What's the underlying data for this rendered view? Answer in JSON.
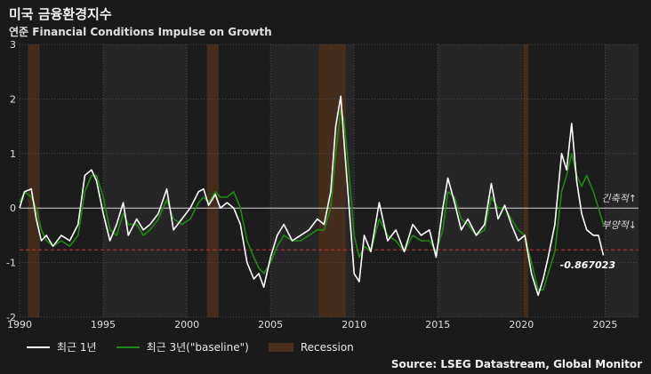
{
  "title": "미국 금융환경지수",
  "subtitle": "연준 Financial Conditions Impulse on Growth",
  "source": "Source: LSEG Datastream, Global Monitor",
  "colors": {
    "background": "#1a1a1a",
    "plot_bg": "#1f1f1f",
    "recent1": "#ffffff",
    "recent3": "#1f8a12",
    "recession": "#4a2f1c",
    "threshold": "#c83232"
  },
  "chart_data": {
    "type": "line",
    "xlim": [
      1990,
      2027
    ],
    "ylim": [
      -2,
      3
    ],
    "xticks": [
      1990,
      1995,
      2000,
      2005,
      2010,
      2015,
      2020,
      2025
    ],
    "xtick_labels": [
      "1990",
      "1995",
      "2000",
      "2005",
      "2010",
      "2015",
      "2020",
      "2025"
    ],
    "yticks": [
      -2,
      -1,
      0,
      1,
      2,
      3
    ],
    "ytick_labels": [
      "-2",
      "-1",
      "0",
      "1",
      "2",
      "3"
    ],
    "grid": true,
    "zero_line": 0,
    "threshold_line": -0.767,
    "recessions": [
      [
        1990.5,
        1991.2
      ],
      [
        2001.2,
        2001.9
      ],
      [
        2007.9,
        2009.5
      ],
      [
        2020.1,
        2020.4
      ]
    ],
    "annotations": {
      "tight": "긴축적↑",
      "loose": "부양적↓",
      "last_value": "-0.867023"
    },
    "legend": [
      "최근 1년",
      "최근 3년(\"baseline\")",
      "Recession"
    ],
    "series": [
      {
        "name": "최근 1년",
        "x": [
          1990.0,
          1990.3,
          1990.7,
          1991.0,
          1991.3,
          1991.6,
          1992.0,
          1992.5,
          1993.0,
          1993.5,
          1993.9,
          1994.3,
          1994.6,
          1995.0,
          1995.4,
          1995.8,
          1996.2,
          1996.5,
          1997.0,
          1997.4,
          1997.8,
          1998.3,
          1998.8,
          1999.2,
          1999.7,
          2000.2,
          2000.7,
          2001.0,
          2001.3,
          2001.7,
          2002.0,
          2002.4,
          2002.8,
          2003.2,
          2003.6,
          2004.0,
          2004.3,
          2004.6,
          2005.0,
          2005.4,
          2005.8,
          2006.3,
          2006.8,
          2007.3,
          2007.8,
          2008.2,
          2008.6,
          2008.9,
          2009.2,
          2009.4,
          2009.7,
          2010.0,
          2010.3,
          2010.6,
          2011.0,
          2011.5,
          2012.0,
          2012.5,
          2013.0,
          2013.5,
          2014.0,
          2014.5,
          2014.9,
          2015.3,
          2015.6,
          2016.0,
          2016.4,
          2016.8,
          2017.3,
          2017.8,
          2018.2,
          2018.6,
          2019.0,
          2019.4,
          2019.8,
          2020.2,
          2020.6,
          2021.0,
          2021.3,
          2021.6,
          2022.0,
          2022.4,
          2022.7,
          2023.0,
          2023.3,
          2023.6,
          2023.9,
          2024.3,
          2024.6,
          2024.9
        ],
        "y": [
          0.0,
          0.3,
          0.35,
          -0.2,
          -0.6,
          -0.5,
          -0.7,
          -0.5,
          -0.6,
          -0.3,
          0.6,
          0.7,
          0.5,
          -0.1,
          -0.6,
          -0.3,
          0.1,
          -0.5,
          -0.2,
          -0.4,
          -0.3,
          -0.1,
          0.35,
          -0.4,
          -0.2,
          0.0,
          0.3,
          0.35,
          0.05,
          0.25,
          0.0,
          0.1,
          0.0,
          -0.3,
          -1.0,
          -1.3,
          -1.2,
          -1.45,
          -0.9,
          -0.5,
          -0.3,
          -0.6,
          -0.5,
          -0.4,
          -0.2,
          -0.3,
          0.3,
          1.5,
          2.05,
          1.2,
          0.0,
          -1.2,
          -1.35,
          -0.5,
          -0.8,
          0.1,
          -0.6,
          -0.4,
          -0.8,
          -0.3,
          -0.5,
          -0.4,
          -0.9,
          0.0,
          0.55,
          0.1,
          -0.4,
          -0.2,
          -0.5,
          -0.3,
          0.45,
          -0.2,
          0.05,
          -0.3,
          -0.6,
          -0.5,
          -1.2,
          -1.6,
          -1.3,
          -0.9,
          -0.3,
          1.0,
          0.7,
          1.55,
          0.5,
          -0.1,
          -0.4,
          -0.5,
          -0.5,
          -0.867
        ]
      },
      {
        "name": "최근 3년(\"baseline\")",
        "x": [
          1990.0,
          1990.3,
          1990.7,
          1991.0,
          1991.3,
          1991.6,
          1992.0,
          1992.5,
          1993.0,
          1993.5,
          1993.9,
          1994.3,
          1994.6,
          1995.0,
          1995.4,
          1995.8,
          1996.2,
          1996.5,
          1997.0,
          1997.4,
          1997.8,
          1998.3,
          1998.8,
          1999.2,
          1999.7,
          2000.2,
          2000.7,
          2001.0,
          2001.3,
          2001.7,
          2002.0,
          2002.4,
          2002.8,
          2003.2,
          2003.6,
          2004.0,
          2004.3,
          2004.6,
          2005.0,
          2005.4,
          2005.8,
          2006.3,
          2006.8,
          2007.3,
          2007.8,
          2008.2,
          2008.6,
          2008.9,
          2009.2,
          2009.4,
          2009.7,
          2010.0,
          2010.3,
          2010.6,
          2011.0,
          2011.5,
          2012.0,
          2012.5,
          2013.0,
          2013.5,
          2014.0,
          2014.5,
          2014.9,
          2015.3,
          2015.6,
          2016.0,
          2016.4,
          2016.8,
          2017.3,
          2017.8,
          2018.2,
          2018.6,
          2019.0,
          2019.4,
          2019.8,
          2020.2,
          2020.6,
          2021.0,
          2021.3,
          2021.6,
          2022.0,
          2022.4,
          2022.7,
          2023.0,
          2023.3,
          2023.6,
          2023.9,
          2024.3,
          2024.6,
          2024.9
        ],
        "y": [
          0.1,
          0.3,
          0.2,
          0.0,
          -0.4,
          -0.6,
          -0.7,
          -0.6,
          -0.7,
          -0.5,
          0.3,
          0.6,
          0.6,
          0.2,
          -0.4,
          -0.5,
          -0.1,
          -0.3,
          -0.3,
          -0.5,
          -0.4,
          -0.2,
          0.15,
          -0.2,
          -0.3,
          -0.2,
          0.1,
          0.2,
          0.1,
          0.3,
          0.2,
          0.2,
          0.3,
          0.0,
          -0.6,
          -0.9,
          -1.1,
          -1.2,
          -1.0,
          -0.7,
          -0.5,
          -0.6,
          -0.6,
          -0.5,
          -0.4,
          -0.4,
          0.0,
          1.0,
          1.8,
          1.6,
          0.6,
          -0.5,
          -0.9,
          -0.7,
          -0.8,
          -0.2,
          -0.5,
          -0.6,
          -0.8,
          -0.5,
          -0.6,
          -0.6,
          -0.8,
          -0.4,
          0.3,
          0.2,
          -0.2,
          -0.3,
          -0.5,
          -0.4,
          0.2,
          0.0,
          0.0,
          -0.2,
          -0.4,
          -0.5,
          -1.0,
          -1.5,
          -1.5,
          -1.2,
          -0.8,
          0.3,
          0.6,
          1.0,
          0.6,
          0.4,
          0.6,
          0.3,
          0.0,
          -0.3
        ]
      }
    ]
  }
}
